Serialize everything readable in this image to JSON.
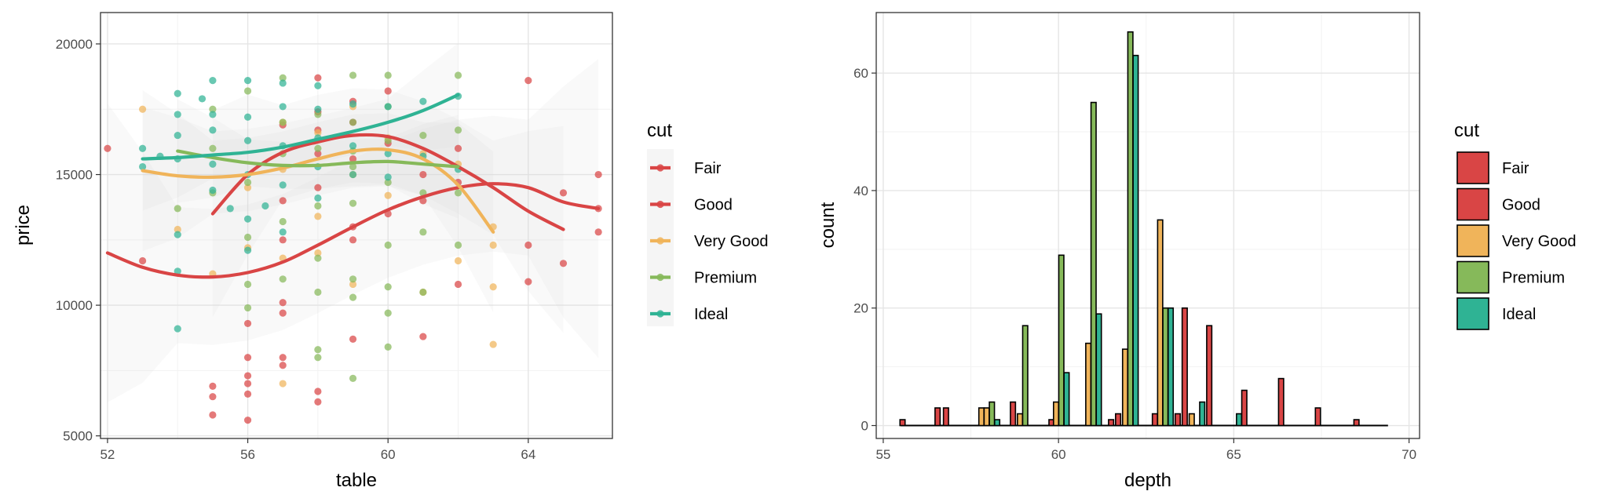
{
  "colors": {
    "Fair": "#d94545",
    "Good": "#d94545",
    "Very Good": "#f0b45a",
    "Premium": "#86b95a",
    "Ideal": "#2fb394"
  },
  "legend": {
    "title": "cut",
    "items": [
      "Fair",
      "Good",
      "Very Good",
      "Premium",
      "Ideal"
    ]
  },
  "chart_data": [
    {
      "type": "scatter",
      "xlabel": "table",
      "ylabel": "price",
      "xlim": [
        51.8,
        66.4
      ],
      "ylim": [
        4900,
        21200
      ],
      "xticks": [
        52,
        56,
        60,
        64
      ],
      "yticks": [
        5000,
        10000,
        15000,
        20000
      ],
      "grid": true,
      "legend_position": "right",
      "points": {
        "Fair": [
          [
            52,
            16000
          ],
          [
            53,
            11700
          ],
          [
            55,
            5800
          ],
          [
            55,
            6500
          ],
          [
            55,
            6900
          ],
          [
            56,
            5600
          ],
          [
            56,
            6600
          ],
          [
            56,
            7000
          ],
          [
            56,
            7300
          ],
          [
            56,
            8000
          ],
          [
            57,
            7700
          ],
          [
            57,
            8000
          ],
          [
            57,
            9700
          ],
          [
            57,
            10100
          ],
          [
            58,
            6300
          ],
          [
            58,
            6700
          ],
          [
            58,
            18700
          ],
          [
            59,
            8700
          ],
          [
            59,
            12500
          ],
          [
            61,
            8800
          ],
          [
            62,
            10800
          ],
          [
            64,
            10900
          ],
          [
            64,
            12300
          ],
          [
            64,
            18600
          ],
          [
            65,
            11600
          ],
          [
            65,
            14300
          ],
          [
            66,
            12800
          ],
          [
            66,
            13700
          ],
          [
            66,
            15000
          ],
          [
            60,
            18200
          ],
          [
            58,
            17400
          ],
          [
            59,
            17800
          ]
        ],
        "Good": [
          [
            56,
            9300
          ],
          [
            57,
            12500
          ],
          [
            57,
            14000
          ],
          [
            58,
            14500
          ],
          [
            58,
            15800
          ],
          [
            59,
            13000
          ],
          [
            59,
            15600
          ],
          [
            60,
            13500
          ],
          [
            60,
            16200
          ],
          [
            61,
            14000
          ],
          [
            61,
            15000
          ],
          [
            62,
            14700
          ],
          [
            62,
            16000
          ],
          [
            58,
            16700
          ],
          [
            57,
            16900
          ],
          [
            59,
            17000
          ]
        ],
        "Very Good": [
          [
            53,
            17500
          ],
          [
            54,
            12900
          ],
          [
            55,
            11200
          ],
          [
            56,
            12200
          ],
          [
            56,
            14500
          ],
          [
            57,
            7000
          ],
          [
            57,
            15200
          ],
          [
            57,
            17000
          ],
          [
            58,
            16600
          ],
          [
            58,
            13400
          ],
          [
            59,
            15000
          ],
          [
            59,
            17600
          ],
          [
            60,
            16400
          ],
          [
            60,
            14200
          ],
          [
            61,
            15800
          ],
          [
            61,
            10500
          ],
          [
            62,
            11700
          ],
          [
            62,
            15400
          ],
          [
            63,
            10700
          ],
          [
            63,
            12300
          ],
          [
            63,
            8500
          ],
          [
            63,
            13000
          ],
          [
            57,
            11800
          ],
          [
            59,
            10800
          ],
          [
            58,
            12000
          ]
        ],
        "Premium": [
          [
            54,
            13700
          ],
          [
            55,
            14300
          ],
          [
            55,
            16000
          ],
          [
            56,
            9900
          ],
          [
            56,
            10800
          ],
          [
            56,
            12600
          ],
          [
            56,
            14700
          ],
          [
            57,
            18700
          ],
          [
            57,
            17000
          ],
          [
            57,
            13200
          ],
          [
            57,
            11000
          ],
          [
            58,
            8000
          ],
          [
            58,
            8300
          ],
          [
            58,
            10500
          ],
          [
            58,
            11800
          ],
          [
            58,
            13800
          ],
          [
            58,
            16000
          ],
          [
            59,
            7200
          ],
          [
            59,
            10300
          ],
          [
            59,
            11000
          ],
          [
            59,
            13900
          ],
          [
            59,
            15300
          ],
          [
            59,
            17000
          ],
          [
            59,
            18800
          ],
          [
            60,
            8400
          ],
          [
            60,
            9700
          ],
          [
            60,
            10700
          ],
          [
            60,
            12300
          ],
          [
            60,
            14700
          ],
          [
            60,
            16300
          ],
          [
            60,
            18800
          ],
          [
            61,
            10500
          ],
          [
            61,
            12800
          ],
          [
            61,
            14300
          ],
          [
            61,
            16500
          ],
          [
            62,
            12300
          ],
          [
            62,
            14300
          ],
          [
            62,
            16700
          ],
          [
            62,
            18800
          ],
          [
            55,
            17500
          ],
          [
            56,
            18200
          ],
          [
            57,
            15800
          ],
          [
            58,
            17300
          ],
          [
            59,
            15900
          ],
          [
            60,
            17600
          ]
        ],
        "Ideal": [
          [
            53,
            15300
          ],
          [
            53,
            16000
          ],
          [
            54,
            9100
          ],
          [
            54,
            11300
          ],
          [
            54,
            12700
          ],
          [
            54,
            15600
          ],
          [
            54,
            16500
          ],
          [
            54,
            17300
          ],
          [
            54,
            18100
          ],
          [
            55,
            14400
          ],
          [
            55,
            15400
          ],
          [
            55,
            16700
          ],
          [
            55,
            17300
          ],
          [
            55,
            18600
          ],
          [
            56,
            12100
          ],
          [
            56,
            13300
          ],
          [
            56,
            15000
          ],
          [
            56,
            16300
          ],
          [
            56,
            17200
          ],
          [
            56,
            18600
          ],
          [
            57,
            12800
          ],
          [
            57,
            14600
          ],
          [
            57,
            16100
          ],
          [
            57,
            17600
          ],
          [
            57,
            18500
          ],
          [
            58,
            14100
          ],
          [
            58,
            15300
          ],
          [
            58,
            16400
          ],
          [
            58,
            17500
          ],
          [
            58,
            18400
          ],
          [
            59,
            15000
          ],
          [
            59,
            16100
          ],
          [
            59,
            17700
          ],
          [
            60,
            14900
          ],
          [
            60,
            15800
          ],
          [
            60,
            17600
          ],
          [
            61,
            15700
          ],
          [
            61,
            17800
          ],
          [
            62,
            15200
          ],
          [
            62,
            18000
          ],
          [
            54.7,
            17900
          ],
          [
            53.5,
            15700
          ],
          [
            55.5,
            13700
          ],
          [
            56.5,
            13800
          ]
        ]
      },
      "smooth": {
        "Fair": [
          [
            52,
            12000
          ],
          [
            53,
            11450
          ],
          [
            54,
            11150
          ],
          [
            55,
            11080
          ],
          [
            56,
            11250
          ],
          [
            57,
            11650
          ],
          [
            58,
            12300
          ],
          [
            59,
            13000
          ],
          [
            60,
            13650
          ],
          [
            61,
            14150
          ],
          [
            62,
            14500
          ],
          [
            63,
            14650
          ],
          [
            64,
            14500
          ],
          [
            65,
            13950
          ],
          [
            66,
            13700
          ]
        ],
        "Good": [
          [
            55,
            13500
          ],
          [
            56,
            15000
          ],
          [
            57,
            15850
          ],
          [
            58,
            16250
          ],
          [
            59,
            16500
          ],
          [
            60,
            16450
          ],
          [
            61,
            16000
          ],
          [
            62,
            15300
          ],
          [
            63,
            14500
          ],
          [
            64,
            13600
          ],
          [
            65,
            12900
          ]
        ],
        "Very Good": [
          [
            53,
            15150
          ],
          [
            54,
            14950
          ],
          [
            55,
            14900
          ],
          [
            56,
            15000
          ],
          [
            57,
            15250
          ],
          [
            58,
            15600
          ],
          [
            59,
            15900
          ],
          [
            60,
            15950
          ],
          [
            61,
            15600
          ],
          [
            62,
            14600
          ],
          [
            63,
            12800
          ]
        ],
        "Premium": [
          [
            54,
            15900
          ],
          [
            55,
            15650
          ],
          [
            56,
            15450
          ],
          [
            57,
            15350
          ],
          [
            58,
            15350
          ],
          [
            59,
            15450
          ],
          [
            60,
            15500
          ],
          [
            61,
            15400
          ],
          [
            62,
            15300
          ]
        ],
        "Ideal": [
          [
            53,
            15600
          ],
          [
            54,
            15650
          ],
          [
            55,
            15750
          ],
          [
            56,
            15850
          ],
          [
            57,
            16050
          ],
          [
            58,
            16350
          ],
          [
            59,
            16650
          ],
          [
            60,
            17000
          ],
          [
            61,
            17450
          ],
          [
            62,
            18050
          ]
        ]
      }
    },
    {
      "type": "bar",
      "xlabel": "depth",
      "ylabel": "count",
      "xlim": [
        54.8,
        70.3
      ],
      "ylim": [
        -2.2,
        70.3
      ],
      "xticks": [
        55,
        60,
        65,
        70
      ],
      "yticks": [
        0,
        20,
        40,
        60
      ],
      "grid": true,
      "legend_position": "right",
      "bars": [
        {
          "x": 55.55,
          "cut": "Fair",
          "value": 1
        },
        {
          "x": 56.55,
          "cut": "Fair",
          "value": 3
        },
        {
          "x": 56.79,
          "cut": "Good",
          "value": 3
        },
        {
          "x": 57.8,
          "cut": "Very Good",
          "value": 3
        },
        {
          "x": 57.95,
          "cut": "Very Good",
          "value": 3
        },
        {
          "x": 58.1,
          "cut": "Premium",
          "value": 4
        },
        {
          "x": 58.25,
          "cut": "Ideal",
          "value": 1
        },
        {
          "x": 58.7,
          "cut": "Fair",
          "value": 4
        },
        {
          "x": 58.9,
          "cut": "Very Good",
          "value": 2
        },
        {
          "x": 59.05,
          "cut": "Premium",
          "value": 17
        },
        {
          "x": 59.8,
          "cut": "Good",
          "value": 1
        },
        {
          "x": 59.93,
          "cut": "Very Good",
          "value": 4
        },
        {
          "x": 60.08,
          "cut": "Premium",
          "value": 29
        },
        {
          "x": 60.23,
          "cut": "Ideal",
          "value": 9
        },
        {
          "x": 60.85,
          "cut": "Very Good",
          "value": 14
        },
        {
          "x": 61.0,
          "cut": "Premium",
          "value": 55
        },
        {
          "x": 61.15,
          "cut": "Ideal",
          "value": 19
        },
        {
          "x": 61.5,
          "cut": "Fair",
          "value": 1
        },
        {
          "x": 61.7,
          "cut": "Good",
          "value": 2
        },
        {
          "x": 61.9,
          "cut": "Very Good",
          "value": 13
        },
        {
          "x": 62.05,
          "cut": "Premium",
          "value": 67
        },
        {
          "x": 62.2,
          "cut": "Ideal",
          "value": 63
        },
        {
          "x": 62.75,
          "cut": "Fair",
          "value": 2
        },
        {
          "x": 62.9,
          "cut": "Very Good",
          "value": 35
        },
        {
          "x": 63.05,
          "cut": "Premium",
          "value": 20
        },
        {
          "x": 63.2,
          "cut": "Ideal",
          "value": 20
        },
        {
          "x": 63.4,
          "cut": "Fair",
          "value": 2
        },
        {
          "x": 63.6,
          "cut": "Good",
          "value": 20
        },
        {
          "x": 63.8,
          "cut": "Very Good",
          "value": 2
        },
        {
          "x": 64.1,
          "cut": "Ideal",
          "value": 4
        },
        {
          "x": 64.3,
          "cut": "Good",
          "value": 17
        },
        {
          "x": 65.15,
          "cut": "Ideal",
          "value": 2
        },
        {
          "x": 65.3,
          "cut": "Fair",
          "value": 6
        },
        {
          "x": 66.35,
          "cut": "Fair",
          "value": 8
        },
        {
          "x": 67.4,
          "cut": "Fair",
          "value": 3
        },
        {
          "x": 68.5,
          "cut": "Fair",
          "value": 1
        }
      ],
      "baseline_range": [
        55.5,
        69.4
      ]
    }
  ]
}
